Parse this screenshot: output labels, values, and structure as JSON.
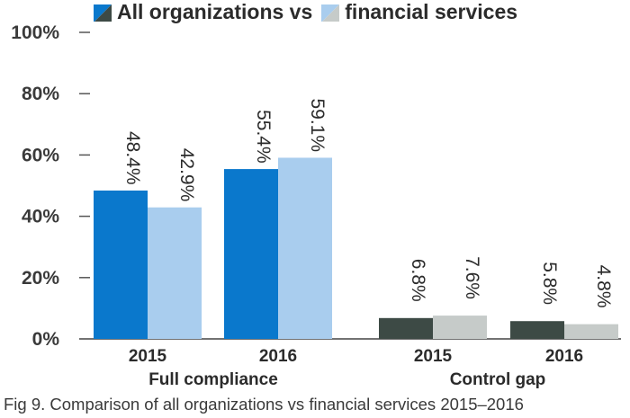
{
  "legend": {
    "items": [
      {
        "label": "All organizations vs",
        "color": "#0a78cc",
        "alt_color": "#3d4a45"
      },
      {
        "label": "financial services",
        "color": "#a9cdee",
        "alt_color": "#c6cbc9"
      }
    ]
  },
  "caption": "Fig 9.    Comparison of all organizations vs financial services 2015–2016",
  "chart_data": {
    "type": "bar",
    "title": "",
    "ylim": [
      0,
      100
    ],
    "yticks": [
      "0%",
      "20%",
      "40%",
      "60%",
      "80%",
      "100%"
    ],
    "grid": false,
    "legend_position": "top",
    "groups": [
      {
        "label": "Full compliance",
        "colors": [
          "#0a78cc",
          "#a9cdee"
        ],
        "categories": [
          {
            "label": "2015",
            "values": [
              48.4,
              42.9
            ],
            "value_labels": [
              "48.4%",
              "42.9%"
            ]
          },
          {
            "label": "2016",
            "values": [
              55.4,
              59.1
            ],
            "value_labels": [
              "55.4%",
              "59.1%"
            ]
          }
        ]
      },
      {
        "label": "Control gap",
        "colors": [
          "#3d4a45",
          "#c6cbc9"
        ],
        "categories": [
          {
            "label": "2015",
            "values": [
              6.8,
              7.6
            ],
            "value_labels": [
              "6.8%",
              "7.6%"
            ]
          },
          {
            "label": "2016",
            "values": [
              5.8,
              4.8
            ],
            "value_labels": [
              "5.8%",
              "4.8%"
            ]
          }
        ]
      }
    ]
  }
}
